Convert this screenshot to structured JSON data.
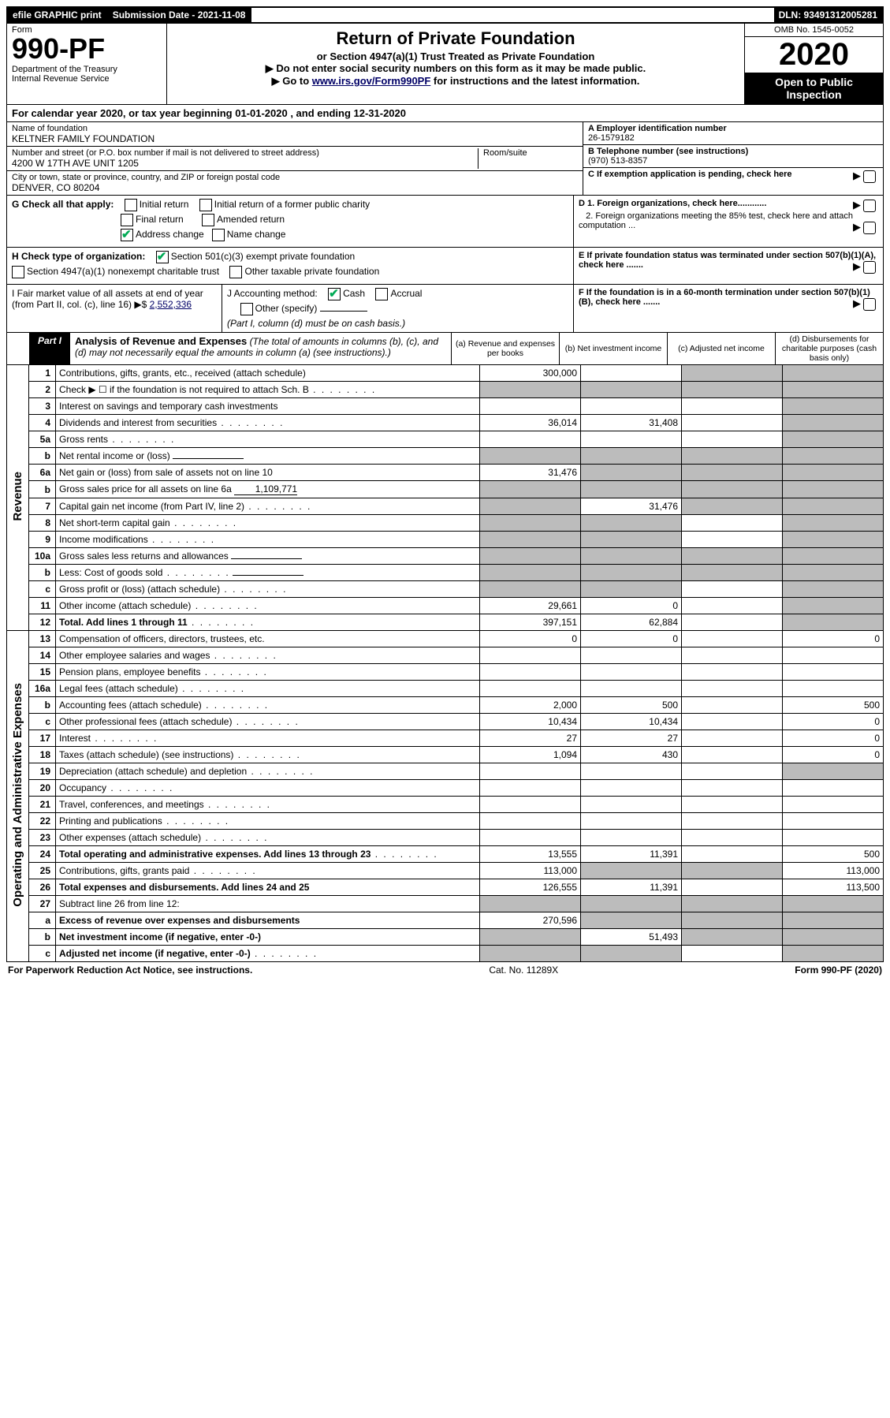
{
  "topbar": {
    "efile": "efile GRAPHIC print",
    "sub_label": "Submission Date - 2021-11-08",
    "dln": "DLN: 93491312005281"
  },
  "header": {
    "form_label": "Form",
    "form_no": "990-PF",
    "dept": "Department of the Treasury\nInternal Revenue Service",
    "title": "Return of Private Foundation",
    "subtitle": "or Section 4947(a)(1) Trust Treated as Private Foundation",
    "note1": "▶ Do not enter social security numbers on this form as it may be made public.",
    "note2_pre": "▶ Go to ",
    "note2_link": "www.irs.gov/Form990PF",
    "note2_post": " for instructions and the latest information.",
    "omb": "OMB No. 1545-0052",
    "year": "2020",
    "open": "Open to Public Inspection"
  },
  "cal_year": "For calendar year 2020, or tax year beginning 01-01-2020             , and ending 12-31-2020",
  "id": {
    "name_label": "Name of foundation",
    "name": "KELTNER FAMILY FOUNDATION",
    "addr_label": "Number and street (or P.O. box number if mail is not delivered to street address)",
    "addr": "4200 W 17TH AVE UNIT 1205",
    "room_label": "Room/suite",
    "city_label": "City or town, state or province, country, and ZIP or foreign postal code",
    "city": "DENVER, CO  80204",
    "a_label": "A Employer identification number",
    "a_val": "26-1579182",
    "b_label": "B Telephone number (see instructions)",
    "b_val": "(970) 513-8357",
    "c_label": "C If exemption application is pending, check here"
  },
  "g": {
    "label": "G Check all that apply:",
    "initial": "Initial return",
    "initial_former": "Initial return of a former public charity",
    "final": "Final return",
    "amended": "Amended return",
    "addr_change": "Address change",
    "name_change": "Name change"
  },
  "d": {
    "d1": "D 1. Foreign organizations, check here............",
    "d2": "2. Foreign organizations meeting the 85% test, check here and attach computation ..."
  },
  "h": {
    "label": "H Check type of organization:",
    "s501": "Section 501(c)(3) exempt private foundation",
    "s4947": "Section 4947(a)(1) nonexempt charitable trust",
    "other_tax": "Other taxable private foundation"
  },
  "e": "E  If private foundation status was terminated under section 507(b)(1)(A), check here .......",
  "i": {
    "label": "I Fair market value of all assets at end of year (from Part II, col. (c), line 16) ▶$ ",
    "val": "2,552,336"
  },
  "j": {
    "label": "J Accounting method:",
    "cash": "Cash",
    "accrual": "Accrual",
    "other": "Other (specify)",
    "note": "(Part I, column (d) must be on cash basis.)"
  },
  "f": "F  If the foundation is in a 60-month termination under section 507(b)(1)(B), check here .......",
  "part1": {
    "label": "Part I",
    "title": "Analysis of Revenue and Expenses",
    "title_note": "(The total of amounts in columns (b), (c), and (d) may not necessarily equal the amounts in column (a) (see instructions).)",
    "col_a": "(a) Revenue and expenses per books",
    "col_b": "(b) Net investment income",
    "col_c": "(c) Adjusted net income",
    "col_d": "(d) Disbursements for charitable purposes (cash basis only)"
  },
  "side": {
    "revenue": "Revenue",
    "expenses": "Operating and Administrative Expenses"
  },
  "rows": [
    {
      "n": "1",
      "t": "Contributions, gifts, grants, etc., received (attach schedule)",
      "a": "300,000",
      "b": "",
      "c": "s",
      "d": "s"
    },
    {
      "n": "2",
      "t": "Check ▶ ☐ if the foundation is not required to attach Sch. B",
      "a": "s",
      "b": "s",
      "c": "s",
      "d": "s",
      "dots": true
    },
    {
      "n": "3",
      "t": "Interest on savings and temporary cash investments",
      "a": "",
      "b": "",
      "c": "",
      "d": "s"
    },
    {
      "n": "4",
      "t": "Dividends and interest from securities",
      "a": "36,014",
      "b": "31,408",
      "c": "",
      "d": "s",
      "dots": true
    },
    {
      "n": "5a",
      "t": "Gross rents",
      "a": "",
      "b": "",
      "c": "",
      "d": "s",
      "dots": true
    },
    {
      "n": "b",
      "t": "Net rental income or (loss)",
      "a": "s",
      "b": "s",
      "c": "s",
      "d": "s",
      "inset": true
    },
    {
      "n": "6a",
      "t": "Net gain or (loss) from sale of assets not on line 10",
      "a": "31,476",
      "b": "s",
      "c": "s",
      "d": "s"
    },
    {
      "n": "b",
      "t": "Gross sales price for all assets on line 6a",
      "a": "s",
      "b": "s",
      "c": "s",
      "d": "s",
      "inset": true,
      "inline": "1,109,771"
    },
    {
      "n": "7",
      "t": "Capital gain net income (from Part IV, line 2)",
      "a": "s",
      "b": "31,476",
      "c": "s",
      "d": "s",
      "dots": true
    },
    {
      "n": "8",
      "t": "Net short-term capital gain",
      "a": "s",
      "b": "s",
      "c": "",
      "d": "s",
      "dots": true
    },
    {
      "n": "9",
      "t": "Income modifications",
      "a": "s",
      "b": "s",
      "c": "",
      "d": "s",
      "dots": true
    },
    {
      "n": "10a",
      "t": "Gross sales less returns and allowances",
      "a": "s",
      "b": "s",
      "c": "s",
      "d": "s",
      "inset": true
    },
    {
      "n": "b",
      "t": "Less: Cost of goods sold",
      "a": "s",
      "b": "s",
      "c": "s",
      "d": "s",
      "inset": true,
      "dots": true
    },
    {
      "n": "c",
      "t": "Gross profit or (loss) (attach schedule)",
      "a": "s",
      "b": "s",
      "c": "",
      "d": "s",
      "dots": true
    },
    {
      "n": "11",
      "t": "Other income (attach schedule)",
      "a": "29,661",
      "b": "0",
      "c": "",
      "d": "s",
      "dots": true
    },
    {
      "n": "12",
      "t": "Total. Add lines 1 through 11",
      "a": "397,151",
      "b": "62,884",
      "c": "",
      "d": "s",
      "bold": true,
      "dots": true
    }
  ],
  "rows2": [
    {
      "n": "13",
      "t": "Compensation of officers, directors, trustees, etc.",
      "a": "0",
      "b": "0",
      "c": "",
      "d": "0"
    },
    {
      "n": "14",
      "t": "Other employee salaries and wages",
      "a": "",
      "b": "",
      "c": "",
      "d": "",
      "dots": true
    },
    {
      "n": "15",
      "t": "Pension plans, employee benefits",
      "a": "",
      "b": "",
      "c": "",
      "d": "",
      "dots": true
    },
    {
      "n": "16a",
      "t": "Legal fees (attach schedule)",
      "a": "",
      "b": "",
      "c": "",
      "d": "",
      "dots": true
    },
    {
      "n": "b",
      "t": "Accounting fees (attach schedule)",
      "a": "2,000",
      "b": "500",
      "c": "",
      "d": "500",
      "dots": true
    },
    {
      "n": "c",
      "t": "Other professional fees (attach schedule)",
      "a": "10,434",
      "b": "10,434",
      "c": "",
      "d": "0",
      "dots": true
    },
    {
      "n": "17",
      "t": "Interest",
      "a": "27",
      "b": "27",
      "c": "",
      "d": "0",
      "dots": true
    },
    {
      "n": "18",
      "t": "Taxes (attach schedule) (see instructions)",
      "a": "1,094",
      "b": "430",
      "c": "",
      "d": "0",
      "dots": true
    },
    {
      "n": "19",
      "t": "Depreciation (attach schedule) and depletion",
      "a": "",
      "b": "",
      "c": "",
      "d": "s",
      "dots": true
    },
    {
      "n": "20",
      "t": "Occupancy",
      "a": "",
      "b": "",
      "c": "",
      "d": "",
      "dots": true
    },
    {
      "n": "21",
      "t": "Travel, conferences, and meetings",
      "a": "",
      "b": "",
      "c": "",
      "d": "",
      "dots": true
    },
    {
      "n": "22",
      "t": "Printing and publications",
      "a": "",
      "b": "",
      "c": "",
      "d": "",
      "dots": true
    },
    {
      "n": "23",
      "t": "Other expenses (attach schedule)",
      "a": "",
      "b": "",
      "c": "",
      "d": "",
      "dots": true
    },
    {
      "n": "24",
      "t": "Total operating and administrative expenses. Add lines 13 through 23",
      "a": "13,555",
      "b": "11,391",
      "c": "",
      "d": "500",
      "bold": true,
      "dots": true
    },
    {
      "n": "25",
      "t": "Contributions, gifts, grants paid",
      "a": "113,000",
      "b": "s",
      "c": "s",
      "d": "113,000",
      "dots": true
    },
    {
      "n": "26",
      "t": "Total expenses and disbursements. Add lines 24 and 25",
      "a": "126,555",
      "b": "11,391",
      "c": "",
      "d": "113,500",
      "bold": true
    },
    {
      "n": "27",
      "t": "Subtract line 26 from line 12:",
      "a": "s",
      "b": "s",
      "c": "s",
      "d": "s"
    },
    {
      "n": "a",
      "t": "Excess of revenue over expenses and disbursements",
      "a": "270,596",
      "b": "s",
      "c": "s",
      "d": "s",
      "bold": true
    },
    {
      "n": "b",
      "t": "Net investment income (if negative, enter -0-)",
      "a": "s",
      "b": "51,493",
      "c": "s",
      "d": "s",
      "bold": true
    },
    {
      "n": "c",
      "t": "Adjusted net income (if negative, enter -0-)",
      "a": "s",
      "b": "s",
      "c": "",
      "d": "s",
      "bold": true,
      "dots": true
    }
  ],
  "footer": {
    "left": "For Paperwork Reduction Act Notice, see instructions.",
    "mid": "Cat. No. 11289X",
    "right": "Form 990-PF (2020)"
  },
  "colors": {
    "shade": "#bcbcbc",
    "link": "#000066",
    "check": "#00aa55"
  }
}
